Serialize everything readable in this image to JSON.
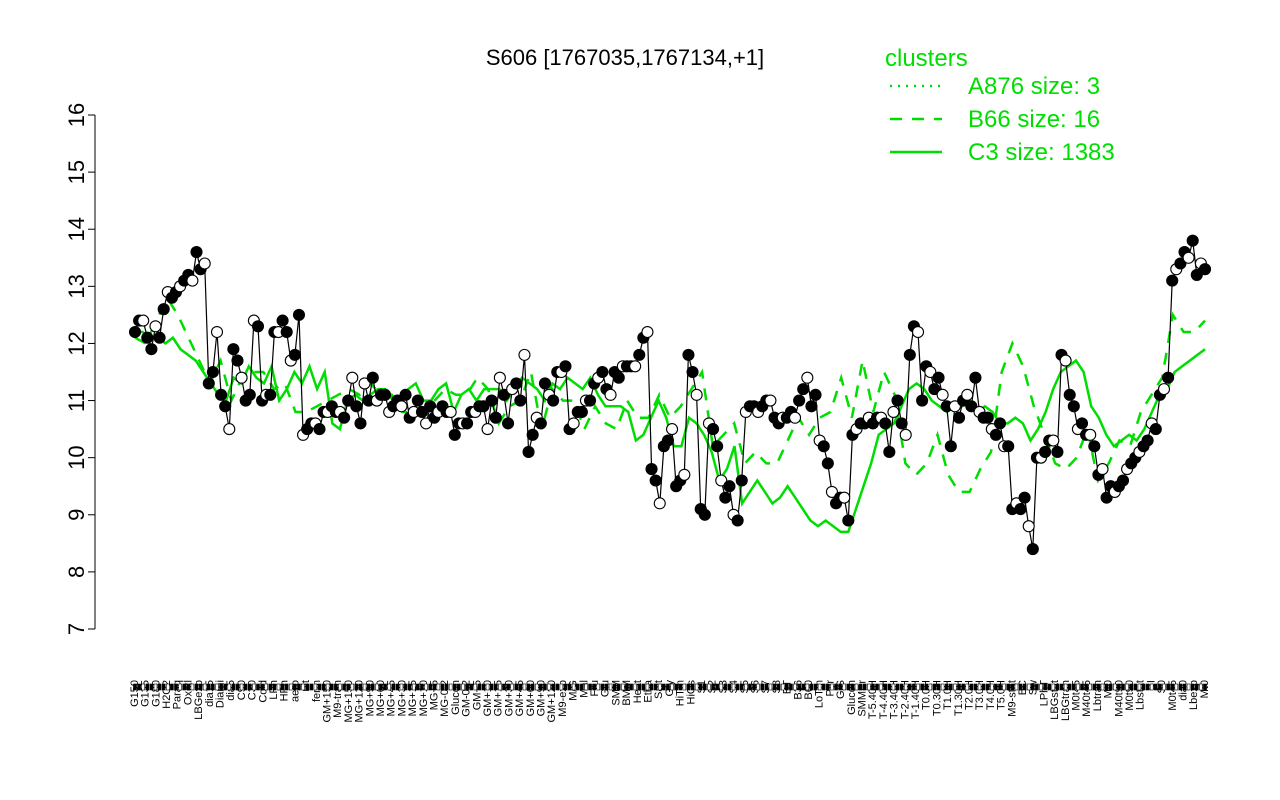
{
  "chart_data": {
    "type": "line",
    "title": "S606 [1767035,1767134,+1]",
    "xlabel": "",
    "ylabel": "",
    "ylim": [
      7,
      16
    ],
    "yticks": [
      7,
      8,
      9,
      10,
      11,
      12,
      13,
      14,
      15,
      16
    ],
    "legend": {
      "position": "top-right",
      "title": "clusters",
      "entries": [
        {
          "label": "A876 size: 3",
          "style": "dotted",
          "color": "#00dd00"
        },
        {
          "label": "B66 size: 16",
          "style": "dashed",
          "color": "#00dd00"
        },
        {
          "label": "C3 size: 1383",
          "style": "solid",
          "color": "#00dd00"
        }
      ]
    },
    "colors": {
      "sample_line": "#000000",
      "cluster_line": "#00dd00",
      "filled_point": "#000000",
      "open_point": "#ffffff"
    },
    "x_labels": [
      "G150",
      "G135",
      "G180",
      "H2O2",
      "Paraq",
      "Oxctl",
      "LBGexp",
      "dia15",
      "Diami",
      "dia5",
      "C90",
      "C30",
      "Cold",
      "LPh",
      "HPh",
      "aero",
      "nit",
      "ferm",
      "GM+150",
      "M9-tran",
      "MG+150",
      "MG+120",
      "MG+90",
      "MG+60",
      "MG+45",
      "MG+30",
      "MG+15",
      "MG+10",
      "MG+5",
      "MG-0.2",
      "Glucon",
      "GM-0.2",
      "GM+5",
      "GM+10",
      "GM+15",
      "GM+30",
      "GM+45",
      "GM+60",
      "GM+90",
      "GM+120",
      "M9-exp",
      "M/G",
      "Mal",
      "Fru",
      "Glu",
      "SMM",
      "BMM",
      "Heat",
      "Etha",
      "Salt",
      "Gly",
      "HiTm",
      "HiOs",
      "S1",
      "S2",
      "S3",
      "S4",
      "S5",
      "S6",
      "S7",
      "S8",
      "BT",
      "B36",
      "B60",
      "LoTm",
      "Pyr",
      "G/S",
      "Glucon",
      "SMMPr",
      "T-5.40H",
      "T-4.40H",
      "T-3.40H",
      "T-2.40H",
      "T-1.40H",
      "T0.0H",
      "T0.30H",
      "T1.0H",
      "T1.30H",
      "T2.0H",
      "T3.0H",
      "T4.0H",
      "T5.0H",
      "M9-stat",
      "BC",
      "Sw",
      "LPhT",
      "LBGstat",
      "LBGtran",
      "M0t45",
      "M40t45",
      "Lbtran",
      "Mt0",
      "M40t90",
      "M0t90",
      "Lbstat",
      "BI",
      "S0",
      "M0t45",
      "dia0",
      "Lbexp",
      "Mt0"
    ],
    "series": [
      {
        "values": [
          12.2,
          12.4,
          12.4,
          12.1,
          11.9,
          12.3,
          12.1,
          12.6,
          12.9,
          12.8,
          12.9,
          13.0,
          13.1,
          13.2,
          13.1,
          13.6,
          13.3,
          13.4,
          11.3,
          11.5,
          12.2,
          11.1,
          10.9,
          10.5,
          11.9,
          11.7,
          11.4,
          11.0,
          11.1,
          12.4,
          12.3,
          11.0,
          11.1,
          11.1,
          12.2,
          12.2,
          12.4,
          12.2,
          11.7,
          11.8,
          12.5,
          10.4,
          10.5,
          10.6,
          10.6,
          10.5,
          10.8,
          10.8,
          10.9,
          10.8,
          10.8,
          10.7,
          11.0,
          11.4,
          10.9,
          10.6,
          11.3,
          11.0,
          11.4,
          11.0,
          11.1,
          11.1,
          10.8,
          10.9,
          11.0,
          10.9,
          11.1,
          10.7,
          10.8,
          11.0,
          10.8,
          10.6,
          10.9,
          10.7,
          10.8,
          10.9,
          10.8,
          10.8,
          10.4,
          10.6,
          10.6,
          10.6,
          10.8,
          10.8,
          10.9,
          10.9,
          10.5,
          11.0,
          10.7,
          11.4,
          11.1,
          10.6,
          11.2,
          11.3,
          11.0,
          11.8,
          10.1,
          10.4,
          10.7,
          10.6,
          11.3,
          11.1,
          11.0,
          11.5,
          11.5,
          11.6,
          10.5,
          10.6,
          10.8,
          10.8,
          11.0,
          11.0,
          11.3,
          11.4,
          11.5,
          11.2,
          11.1,
          11.5,
          11.4,
          11.6,
          11.6,
          11.6,
          11.6,
          11.8,
          12.1,
          12.2,
          9.8,
          9.6,
          9.2,
          10.2,
          10.3,
          10.5,
          9.5,
          9.6,
          9.7,
          11.8,
          11.5,
          11.1,
          9.1,
          9.0,
          10.6,
          10.5,
          10.2,
          9.6,
          9.3,
          9.5,
          9.0,
          8.9,
          9.6,
          10.8,
          10.9,
          10.9,
          10.8,
          10.9,
          11.0,
          11.0,
          10.7,
          10.6,
          10.7,
          10.7,
          10.8,
          10.7,
          11.0,
          11.2,
          11.4,
          10.9,
          11.1,
          10.3,
          10.2,
          9.9,
          9.4,
          9.2,
          9.3,
          9.3,
          8.9,
          10.4,
          10.5,
          10.6,
          10.6,
          10.7,
          10.6,
          10.7,
          10.7,
          10.6,
          10.1,
          10.8,
          11.0,
          10.6,
          10.4,
          11.8,
          12.3,
          12.2,
          11.0,
          11.6,
          11.5,
          11.2,
          11.4,
          11.1,
          10.9,
          10.2,
          10.9,
          10.7,
          11.0,
          11.1,
          10.9,
          11.4,
          10.8,
          10.7,
          10.7,
          10.5,
          10.4,
          10.6,
          10.2,
          10.2,
          9.1,
          9.2,
          9.1,
          9.3,
          8.8,
          8.4,
          10.0,
          10.0,
          10.1,
          10.3,
          10.3,
          10.1,
          11.8,
          11.7,
          11.1,
          10.9,
          10.5,
          10.6,
          10.4,
          10.4,
          10.2,
          9.7,
          9.8,
          9.3,
          9.5,
          9.4,
          9.5,
          9.6,
          9.8,
          9.9,
          10.0,
          10.1,
          10.2,
          10.3,
          10.6,
          10.5,
          11.1,
          11.2,
          11.4,
          13.1,
          13.3,
          13.4,
          13.6,
          13.5,
          13.8,
          13.2,
          13.4,
          13.3
        ]
      },
      {
        "name": "B66 size: 16",
        "values": [
          12.1,
          12.0,
          12.4,
          12.8,
          12.5,
          12.1,
          11.7,
          11.3,
          11.7,
          11.0,
          11.4,
          11.5,
          11.5,
          11.2,
          11.3,
          10.8,
          10.8,
          10.9,
          11.0,
          11.1,
          11.2,
          11.1,
          11.3,
          11.1,
          11.1,
          10.8,
          10.8,
          10.8,
          11.0,
          11.2,
          11.1,
          11.1,
          11.4,
          11.2,
          10.6,
          10.9,
          11.0,
          11.5,
          10.5,
          11.2,
          11.0,
          11.0,
          10.5,
          10.9,
          10.6,
          10.5,
          11.0,
          10.7,
          10.7,
          11.1,
          10.7,
          10.9,
          11.2,
          11.5,
          10.2,
          10.4,
          10.6,
          9.9,
          10.1,
          9.9,
          9.9,
          10.3,
          10.7,
          10.4,
          10.7,
          10.8,
          11.4,
          10.7,
          11.7,
          10.8,
          11.5,
          11.1,
          9.9,
          9.7,
          9.9,
          10.4,
          9.7,
          9.4,
          9.4,
          9.8,
          10.1,
          11.5,
          12.0,
          11.6,
          10.9,
          10.4,
          9.9,
          9.8,
          10.0,
          10.5,
          9.6,
          9.9,
          10.3,
          10.2,
          10.8,
          11.1,
          11.4,
          12.5,
          12.2,
          12.2,
          12.4
        ]
      },
      {
        "name": "C3 size: 1383",
        "values": [
          12.2,
          12.2,
          12.1,
          12.1,
          12.0,
          12.1,
          11.9,
          11.8,
          11.7,
          11.5,
          11.3,
          11.1,
          11.0,
          11.4,
          11.3,
          11.6,
          11.4,
          11.3,
          11.6,
          11.0,
          11.2,
          11.5,
          11.3,
          11.6,
          11.2,
          11.5,
          10.6,
          10.5,
          11.0,
          11.1,
          11.0,
          11.1,
          11.2,
          11.2,
          11.0,
          11.0,
          11.2,
          11.3,
          11.0,
          11.0,
          11.2,
          11.3,
          10.8,
          11.1,
          11.2,
          11.0,
          11.2,
          11.2,
          11.2,
          11.0,
          11.2,
          11.4,
          11.3,
          11.2,
          11.0,
          11.3,
          11.2,
          11.4,
          11.3,
          11.2,
          11.4,
          11.1,
          10.9,
          10.9,
          10.9,
          10.8,
          10.3,
          10.4,
          10.7,
          11.0,
          10.7,
          10.2,
          10.2,
          10.7,
          10.6,
          10.4,
          10.1,
          9.6,
          9.8,
          10.2,
          9.2,
          9.4,
          9.6,
          9.4,
          9.2,
          9.3,
          9.5,
          9.3,
          9.1,
          8.9,
          8.8,
          8.9,
          8.8,
          8.7,
          8.7,
          9.1,
          9.5,
          9.9,
          10.4,
          10.5,
          10.6,
          10.9,
          11.2,
          11.3,
          11.2,
          11.0,
          10.9,
          10.8,
          10.9,
          10.9,
          11.0,
          10.8,
          10.9,
          10.8,
          10.6,
          10.6,
          10.7,
          10.6,
          10.3,
          10.5,
          10.8,
          11.2,
          11.5,
          11.6,
          11.7,
          11.5,
          10.9,
          10.7,
          10.4,
          10.2,
          10.3,
          10.4,
          10.3,
          10.5,
          10.8,
          11.1,
          11.2,
          11.5,
          11.6,
          11.7,
          11.8,
          11.9
        ]
      }
    ]
  }
}
